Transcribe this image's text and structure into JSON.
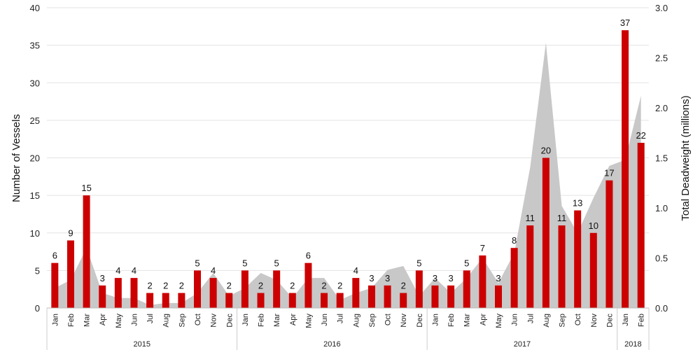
{
  "chart_data": {
    "type": "bar",
    "y_left_label": "Number of Vessels",
    "y_right_label": "Total Deadweight (millions)",
    "y_left_range": [
      0,
      40
    ],
    "y_left_ticks": [
      "0",
      "5",
      "10",
      "15",
      "20",
      "25",
      "30",
      "35",
      "40"
    ],
    "y_right_range": [
      0,
      3.0
    ],
    "y_right_ticks": [
      "0.0",
      "0.5",
      "1.0",
      "1.5",
      "2.0",
      "2.5",
      "3.0"
    ],
    "grid": true,
    "colors": {
      "bars": "#cc0000",
      "area": "#c8c8c8",
      "grid": "#e3e3e3"
    },
    "years": [
      {
        "label": "2015",
        "months": 12
      },
      {
        "label": "2016",
        "months": 12
      },
      {
        "label": "2017",
        "months": 12
      },
      {
        "label": "2018",
        "months": 2
      }
    ],
    "categories": [
      "Jan",
      "Feb",
      "Mar",
      "Apr",
      "May",
      "Jun",
      "Jul",
      "Aug",
      "Sep",
      "Oct",
      "Nov",
      "Dec",
      "Jan",
      "Feb",
      "Mar",
      "Apr",
      "May",
      "Jun",
      "Jul",
      "Aug",
      "Sep",
      "Oct",
      "Nov",
      "Dec",
      "Jan",
      "Feb",
      "Mar",
      "Apr",
      "May",
      "Jun",
      "Jul",
      "Aug",
      "Sep",
      "Oct",
      "Nov",
      "Dec",
      "Jan",
      "Feb"
    ],
    "series": [
      {
        "name": "Number of Vessels",
        "axis": "left",
        "chart": "bar",
        "values": [
          6,
          9,
          15,
          3,
          4,
          4,
          2,
          2,
          2,
          5,
          4,
          2,
          5,
          2,
          5,
          2,
          6,
          2,
          2,
          4,
          3,
          3,
          2,
          5,
          3,
          3,
          5,
          7,
          3,
          8,
          11,
          20,
          11,
          13,
          10,
          17,
          37,
          22
        ]
      },
      {
        "name": "Total Deadweight (millions)",
        "axis": "right",
        "chart": "area",
        "values": [
          0.2,
          0.28,
          0.6,
          0.15,
          0.1,
          0.1,
          0.03,
          0.05,
          0.05,
          0.15,
          0.35,
          0.12,
          0.2,
          0.35,
          0.28,
          0.1,
          0.3,
          0.3,
          0.08,
          0.15,
          0.2,
          0.38,
          0.42,
          0.12,
          0.3,
          0.15,
          0.3,
          0.5,
          0.25,
          0.55,
          1.4,
          2.65,
          1.02,
          0.75,
          1.1,
          1.42,
          1.48,
          2.12
        ]
      }
    ]
  }
}
